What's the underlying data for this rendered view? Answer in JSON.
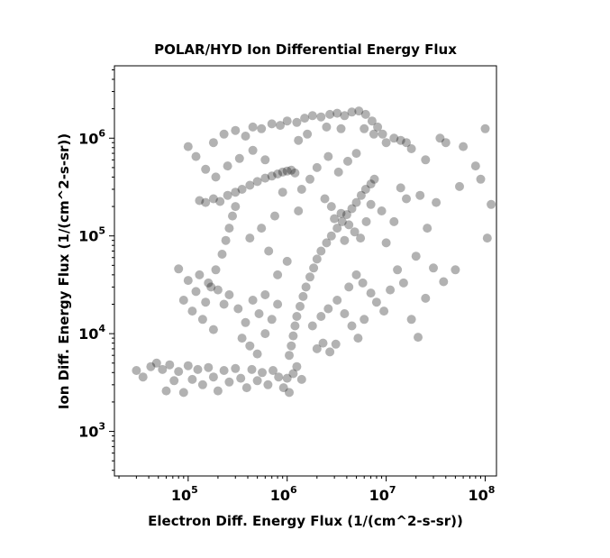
{
  "chart_data": {
    "type": "scatter",
    "title": "POLAR/HYD  Ion Differential Energy Flux",
    "xlabel": "Electron Diff. Energy Flux (1/(cm^2-s-sr))",
    "ylabel": "Ion Diff. Energy Flux (1/(cm^2-s-sr))",
    "xscale": "log",
    "yscale": "log",
    "xlim": [
      18000,
      130000000
    ],
    "ylim": [
      350,
      5500000
    ],
    "xticks": [
      {
        "base": "10",
        "exp": "5",
        "value": 100000
      },
      {
        "base": "10",
        "exp": "6",
        "value": 1000000
      },
      {
        "base": "10",
        "exp": "7",
        "value": 10000000
      },
      {
        "base": "10",
        "exp": "8",
        "value": 100000000
      }
    ],
    "yticks": [
      {
        "base": "10",
        "exp": "3",
        "value": 1000
      },
      {
        "base": "10",
        "exp": "4",
        "value": 10000
      },
      {
        "base": "10",
        "exp": "5",
        "value": 100000
      },
      {
        "base": "10",
        "exp": "6",
        "value": 1000000
      }
    ],
    "marker_color": "#000000",
    "marker_opacity": 0.3,
    "grid": false,
    "points": [
      {
        "x": 30000,
        "y": 4200
      },
      {
        "x": 35000,
        "y": 3600
      },
      {
        "x": 42000,
        "y": 4600
      },
      {
        "x": 48000,
        "y": 5000
      },
      {
        "x": 55000,
        "y": 4300
      },
      {
        "x": 60000,
        "y": 2600
      },
      {
        "x": 65000,
        "y": 4800
      },
      {
        "x": 72000,
        "y": 3300
      },
      {
        "x": 80000,
        "y": 4100
      },
      {
        "x": 90000,
        "y": 2500
      },
      {
        "x": 100000,
        "y": 4700
      },
      {
        "x": 110000,
        "y": 3400
      },
      {
        "x": 125000,
        "y": 4300
      },
      {
        "x": 140000,
        "y": 3000
      },
      {
        "x": 160000,
        "y": 4500
      },
      {
        "x": 180000,
        "y": 3600
      },
      {
        "x": 200000,
        "y": 2600
      },
      {
        "x": 230000,
        "y": 4200
      },
      {
        "x": 260000,
        "y": 3200
      },
      {
        "x": 300000,
        "y": 4400
      },
      {
        "x": 340000,
        "y": 3500
      },
      {
        "x": 390000,
        "y": 2800
      },
      {
        "x": 440000,
        "y": 4300
      },
      {
        "x": 500000,
        "y": 3300
      },
      {
        "x": 560000,
        "y": 4000
      },
      {
        "x": 640000,
        "y": 3000
      },
      {
        "x": 720000,
        "y": 4200
      },
      {
        "x": 820000,
        "y": 3600
      },
      {
        "x": 920000,
        "y": 2800
      },
      {
        "x": 1000000,
        "y": 3500
      },
      {
        "x": 1050000,
        "y": 2500
      },
      {
        "x": 1150000,
        "y": 3900
      },
      {
        "x": 1250000,
        "y": 4600
      },
      {
        "x": 1400000,
        "y": 3400
      },
      {
        "x": 1050000,
        "y": 6000
      },
      {
        "x": 1100000,
        "y": 7500
      },
      {
        "x": 1150000,
        "y": 9500
      },
      {
        "x": 1200000,
        "y": 12000
      },
      {
        "x": 1250000,
        "y": 15000
      },
      {
        "x": 1350000,
        "y": 19000
      },
      {
        "x": 1450000,
        "y": 24000
      },
      {
        "x": 1550000,
        "y": 30000
      },
      {
        "x": 1700000,
        "y": 38000
      },
      {
        "x": 1850000,
        "y": 47000
      },
      {
        "x": 2000000,
        "y": 58000
      },
      {
        "x": 2200000,
        "y": 70000
      },
      {
        "x": 2500000,
        "y": 85000
      },
      {
        "x": 2800000,
        "y": 100000
      },
      {
        "x": 3200000,
        "y": 120000
      },
      {
        "x": 3600000,
        "y": 140000
      },
      {
        "x": 4000000,
        "y": 165000
      },
      {
        "x": 4500000,
        "y": 190000
      },
      {
        "x": 5000000,
        "y": 220000
      },
      {
        "x": 5600000,
        "y": 260000
      },
      {
        "x": 6200000,
        "y": 300000
      },
      {
        "x": 7000000,
        "y": 340000
      },
      {
        "x": 7600000,
        "y": 380000
      },
      {
        "x": 3000000,
        "y": 150000
      },
      {
        "x": 3500000,
        "y": 170000
      },
      {
        "x": 4200000,
        "y": 130000
      },
      {
        "x": 4800000,
        "y": 110000
      },
      {
        "x": 5500000,
        "y": 95000
      },
      {
        "x": 6300000,
        "y": 140000
      },
      {
        "x": 7000000,
        "y": 210000
      },
      {
        "x": 3800000,
        "y": 90000
      },
      {
        "x": 2800000,
        "y": 200000
      },
      {
        "x": 2400000,
        "y": 240000
      },
      {
        "x": 130000,
        "y": 230000
      },
      {
        "x": 150000,
        "y": 220000
      },
      {
        "x": 180000,
        "y": 240000
      },
      {
        "x": 210000,
        "y": 225000
      },
      {
        "x": 250000,
        "y": 260000
      },
      {
        "x": 300000,
        "y": 280000
      },
      {
        "x": 350000,
        "y": 300000
      },
      {
        "x": 420000,
        "y": 330000
      },
      {
        "x": 500000,
        "y": 360000
      },
      {
        "x": 600000,
        "y": 390000
      },
      {
        "x": 700000,
        "y": 410000
      },
      {
        "x": 800000,
        "y": 430000
      },
      {
        "x": 900000,
        "y": 450000
      },
      {
        "x": 1000000,
        "y": 460000
      },
      {
        "x": 1100000,
        "y": 470000
      },
      {
        "x": 1200000,
        "y": 440000
      },
      {
        "x": 150000,
        "y": 21000
      },
      {
        "x": 170000,
        "y": 30000
      },
      {
        "x": 190000,
        "y": 45000
      },
      {
        "x": 220000,
        "y": 65000
      },
      {
        "x": 240000,
        "y": 90000
      },
      {
        "x": 260000,
        "y": 120000
      },
      {
        "x": 280000,
        "y": 160000
      },
      {
        "x": 300000,
        "y": 200000
      },
      {
        "x": 90000,
        "y": 22000
      },
      {
        "x": 100000,
        "y": 35000
      },
      {
        "x": 120000,
        "y": 27000
      },
      {
        "x": 130000,
        "y": 40000
      },
      {
        "x": 160000,
        "y": 33000
      },
      {
        "x": 200000,
        "y": 28000
      },
      {
        "x": 230000,
        "y": 20000
      },
      {
        "x": 260000,
        "y": 25000
      },
      {
        "x": 80000,
        "y": 46000
      },
      {
        "x": 110000,
        "y": 17000
      },
      {
        "x": 140000,
        "y": 14000
      },
      {
        "x": 180000,
        "y": 11000
      },
      {
        "x": 320000,
        "y": 18000
      },
      {
        "x": 380000,
        "y": 13000
      },
      {
        "x": 450000,
        "y": 22000
      },
      {
        "x": 520000,
        "y": 16000
      },
      {
        "x": 600000,
        "y": 25000
      },
      {
        "x": 700000,
        "y": 14000
      },
      {
        "x": 800000,
        "y": 20000
      },
      {
        "x": 350000,
        "y": 9000
      },
      {
        "x": 420000,
        "y": 7500
      },
      {
        "x": 500000,
        "y": 6200
      },
      {
        "x": 600000,
        "y": 10000
      },
      {
        "x": 2000000,
        "y": 7000
      },
      {
        "x": 2300000,
        "y": 8000
      },
      {
        "x": 2700000,
        "y": 6500
      },
      {
        "x": 3100000,
        "y": 7800
      },
      {
        "x": 1800000,
        "y": 12000
      },
      {
        "x": 2200000,
        "y": 15000
      },
      {
        "x": 2600000,
        "y": 18000
      },
      {
        "x": 3200000,
        "y": 22000
      },
      {
        "x": 3800000,
        "y": 16000
      },
      {
        "x": 4500000,
        "y": 12000
      },
      {
        "x": 5200000,
        "y": 9000
      },
      {
        "x": 6000000,
        "y": 14000
      },
      {
        "x": 4200000,
        "y": 30000
      },
      {
        "x": 5000000,
        "y": 40000
      },
      {
        "x": 5800000,
        "y": 33000
      },
      {
        "x": 7000000,
        "y": 26000
      },
      {
        "x": 8000000,
        "y": 21000
      },
      {
        "x": 9500000,
        "y": 17000
      },
      {
        "x": 11000000,
        "y": 28000
      },
      {
        "x": 13000000,
        "y": 45000
      },
      {
        "x": 15000000,
        "y": 33000
      },
      {
        "x": 18000000,
        "y": 14000
      },
      {
        "x": 21000000,
        "y": 9200
      },
      {
        "x": 25000000,
        "y": 23000
      },
      {
        "x": 30000000,
        "y": 47000
      },
      {
        "x": 38000000,
        "y": 34000
      },
      {
        "x": 50000000,
        "y": 45000
      },
      {
        "x": 20000000,
        "y": 62000
      },
      {
        "x": 26000000,
        "y": 120000
      },
      {
        "x": 32000000,
        "y": 220000
      },
      {
        "x": 22000000,
        "y": 260000
      },
      {
        "x": 16000000,
        "y": 240000
      },
      {
        "x": 12000000,
        "y": 140000
      },
      {
        "x": 10000000,
        "y": 85000
      },
      {
        "x": 9000000,
        "y": 180000
      },
      {
        "x": 14000000,
        "y": 310000
      },
      {
        "x": 25000000,
        "y": 600000
      },
      {
        "x": 40000000,
        "y": 900000
      },
      {
        "x": 55000000,
        "y": 320000
      },
      {
        "x": 60000000,
        "y": 820000
      },
      {
        "x": 80000000,
        "y": 520000
      },
      {
        "x": 90000000,
        "y": 380000
      },
      {
        "x": 100000000,
        "y": 1250000
      },
      {
        "x": 105000000,
        "y": 95000
      },
      {
        "x": 115000000,
        "y": 210000
      },
      {
        "x": 35000000,
        "y": 1000000
      },
      {
        "x": 100000,
        "y": 820000
      },
      {
        "x": 120000,
        "y": 650000
      },
      {
        "x": 150000,
        "y": 480000
      },
      {
        "x": 180000,
        "y": 900000
      },
      {
        "x": 230000,
        "y": 1100000
      },
      {
        "x": 300000,
        "y": 1200000
      },
      {
        "x": 380000,
        "y": 1050000
      },
      {
        "x": 450000,
        "y": 1300000
      },
      {
        "x": 550000,
        "y": 1250000
      },
      {
        "x": 700000,
        "y": 1400000
      },
      {
        "x": 850000,
        "y": 1350000
      },
      {
        "x": 1000000,
        "y": 1500000
      },
      {
        "x": 1250000,
        "y": 1450000
      },
      {
        "x": 1500000,
        "y": 1600000
      },
      {
        "x": 1800000,
        "y": 1700000
      },
      {
        "x": 2200000,
        "y": 1650000
      },
      {
        "x": 2700000,
        "y": 1750000
      },
      {
        "x": 3200000,
        "y": 1800000
      },
      {
        "x": 3800000,
        "y": 1700000
      },
      {
        "x": 4500000,
        "y": 1850000
      },
      {
        "x": 5300000,
        "y": 1900000
      },
      {
        "x": 6200000,
        "y": 1750000
      },
      {
        "x": 7200000,
        "y": 1500000
      },
      {
        "x": 8200000,
        "y": 1300000
      },
      {
        "x": 9200000,
        "y": 1100000
      },
      {
        "x": 10000000,
        "y": 900000
      },
      {
        "x": 12000000,
        "y": 1000000
      },
      {
        "x": 14000000,
        "y": 950000
      },
      {
        "x": 16000000,
        "y": 900000
      },
      {
        "x": 18000000,
        "y": 780000
      },
      {
        "x": 6000000,
        "y": 1250000
      },
      {
        "x": 7500000,
        "y": 1100000
      },
      {
        "x": 2500000,
        "y": 1300000
      },
      {
        "x": 3500000,
        "y": 1250000
      },
      {
        "x": 1600000,
        "y": 1100000
      },
      {
        "x": 1300000,
        "y": 950000
      },
      {
        "x": 2000000,
        "y": 500000
      },
      {
        "x": 2600000,
        "y": 650000
      },
      {
        "x": 3300000,
        "y": 450000
      },
      {
        "x": 4100000,
        "y": 580000
      },
      {
        "x": 5000000,
        "y": 700000
      },
      {
        "x": 1700000,
        "y": 380000
      },
      {
        "x": 1400000,
        "y": 300000
      },
      {
        "x": 600000,
        "y": 600000
      },
      {
        "x": 450000,
        "y": 750000
      },
      {
        "x": 330000,
        "y": 620000
      },
      {
        "x": 250000,
        "y": 520000
      },
      {
        "x": 190000,
        "y": 400000
      },
      {
        "x": 900000,
        "y": 280000
      },
      {
        "x": 1300000,
        "y": 180000
      },
      {
        "x": 750000,
        "y": 160000
      },
      {
        "x": 550000,
        "y": 120000
      },
      {
        "x": 420000,
        "y": 95000
      },
      {
        "x": 650000,
        "y": 70000
      },
      {
        "x": 1000000,
        "y": 55000
      },
      {
        "x": 800000,
        "y": 40000
      }
    ]
  }
}
